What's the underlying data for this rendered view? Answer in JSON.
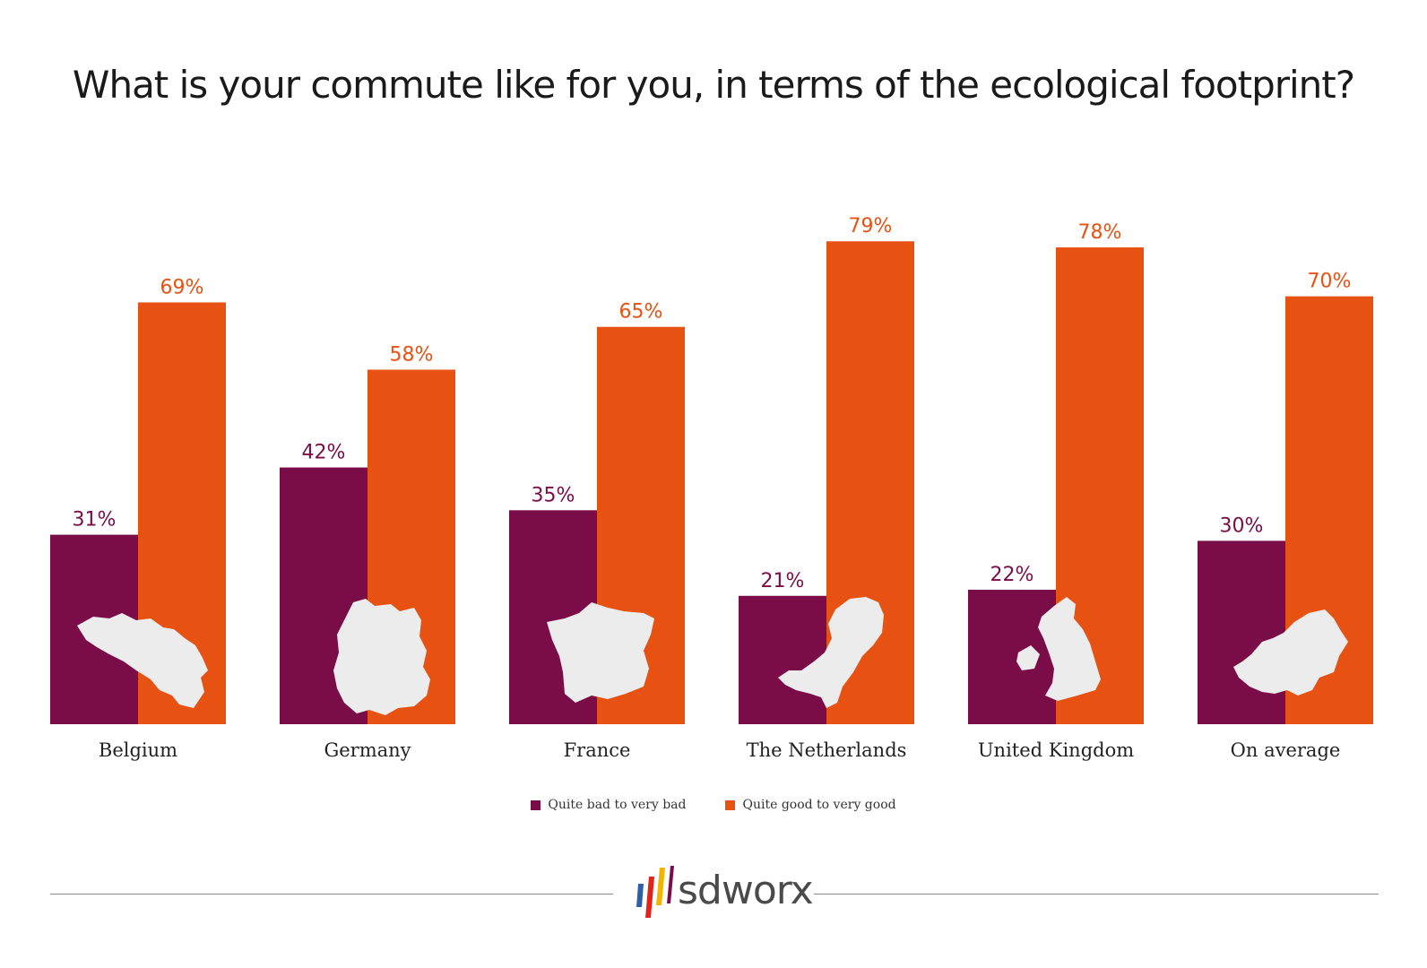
{
  "title": "What is your commute like for you, in terms of the ecological footprint?",
  "colors": {
    "bad": "#7a0c47",
    "good": "#e75112",
    "map": "#ececec"
  },
  "legend": {
    "bad_label": "Quite bad to very bad",
    "good_label": "Quite good to very good"
  },
  "logo": {
    "text": "sdworx"
  },
  "chart_data": {
    "type": "bar",
    "categories": [
      "Belgium",
      "Germany",
      "France",
      "The Netherlands",
      "United Kingdom",
      "On average"
    ],
    "series": [
      {
        "name": "Quite bad to very bad",
        "values": [
          31,
          42,
          35,
          21,
          22,
          30
        ]
      },
      {
        "name": "Quite good to very good",
        "values": [
          69,
          58,
          65,
          79,
          78,
          70
        ]
      }
    ],
    "value_labels": {
      "bad": [
        "31%",
        "42%",
        "35%",
        "21%",
        "22%",
        "30%"
      ],
      "good": [
        "69%",
        "58%",
        "65%",
        "79%",
        "78%",
        "70%"
      ]
    },
    "ylim": [
      0,
      100
    ],
    "grid": false,
    "legend_position": "bottom",
    "title": "What is your commute like for you, in terms of the ecological footprint?",
    "xlabel": "",
    "ylabel": ""
  }
}
